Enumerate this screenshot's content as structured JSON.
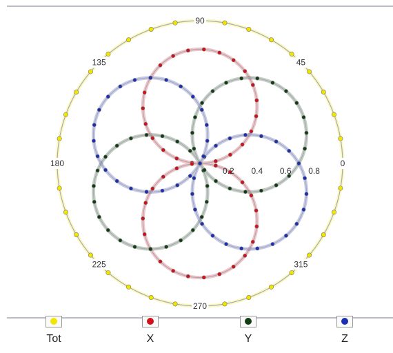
{
  "chart_data": {
    "type": "polar-line",
    "angle_ticks": [
      {
        "angle": 0,
        "label": "0"
      },
      {
        "angle": 45,
        "label": "45"
      },
      {
        "angle": 90,
        "label": "90"
      },
      {
        "angle": 135,
        "label": "135"
      },
      {
        "angle": 180,
        "label": "180"
      },
      {
        "angle": 225,
        "label": "225"
      },
      {
        "angle": 270,
        "label": "270"
      },
      {
        "angle": 315,
        "label": "315"
      }
    ],
    "radial_ticks": [
      "0.2",
      "0.4",
      "0.6",
      "0.8"
    ],
    "r_max": 1.0,
    "grid": false,
    "legend_position": "bottom",
    "series": [
      {
        "name": "Tot",
        "color": "#f2e600",
        "formula": "constant",
        "amplitude": 1.0
      },
      {
        "name": "X",
        "color": "#d0101a",
        "formula": "abs_cos",
        "phase_deg": 90,
        "amplitude": 0.8
      },
      {
        "name": "Y",
        "color": "#123c12",
        "formula": "abs_cos",
        "phase_deg": 30,
        "amplitude": 0.8
      },
      {
        "name": "Z",
        "color": "#1b2fb0",
        "formula": "abs_cos",
        "phase_deg": 150,
        "amplitude": 0.8
      }
    ]
  }
}
